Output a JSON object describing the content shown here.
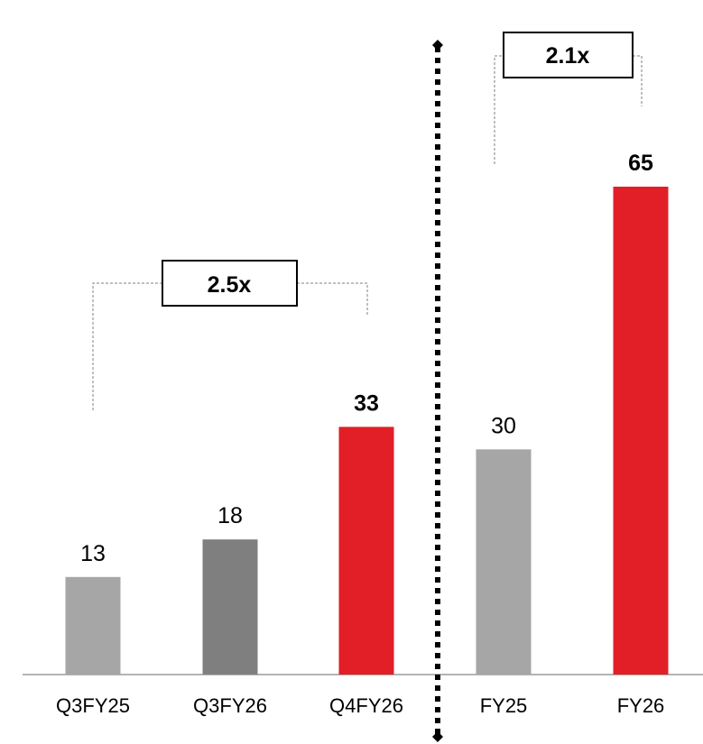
{
  "chart_data": {
    "type": "bar",
    "categories": [
      "Q3FY25",
      "Q3FY26",
      "Q4FY26",
      "FY25",
      "FY26"
    ],
    "values": [
      13,
      18,
      33,
      30,
      65
    ],
    "colors": [
      "#a6a6a6",
      "#7f7f7f",
      "#e21f26",
      "#a6a6a6",
      "#e21f26"
    ],
    "bold_labels": [
      false,
      false,
      true,
      false,
      true
    ],
    "ylim": [
      0,
      65
    ],
    "title": "",
    "xlabel": "",
    "ylabel": "",
    "grid": false,
    "divider_after_category": "Q4FY26",
    "annotations": [
      {
        "text": "2.5x",
        "from": "Q3FY25",
        "to": "Q4FY26"
      },
      {
        "text": "2.1x",
        "from": "FY25",
        "to": "FY26"
      }
    ]
  }
}
